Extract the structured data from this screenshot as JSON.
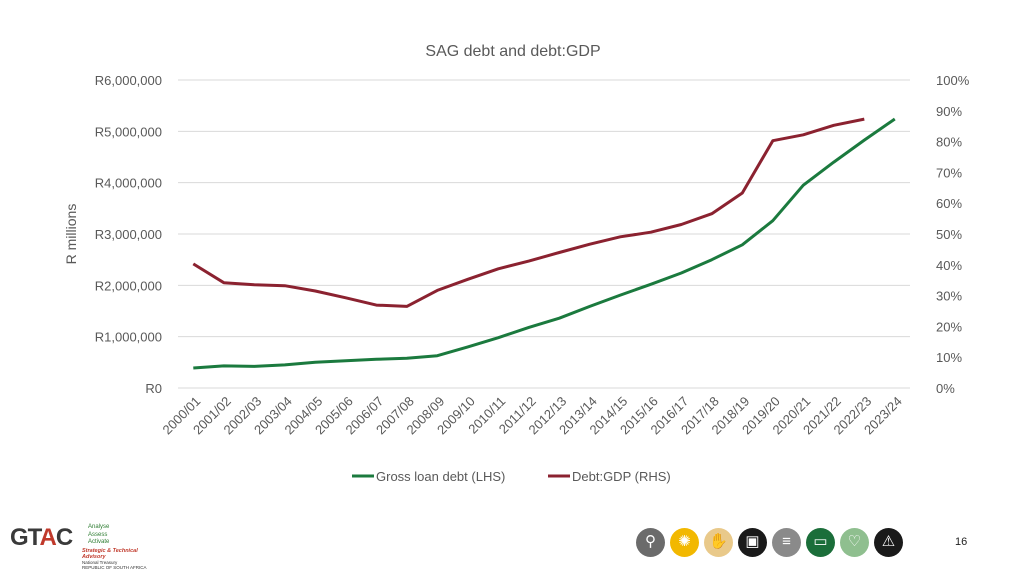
{
  "chart_data": {
    "type": "line",
    "title": "SAG debt and debt:GDP",
    "ylabel": "R millions",
    "y2label": "",
    "categories": [
      "2000/01",
      "2001/02",
      "2002/03",
      "2003/04",
      "2004/05",
      "2005/06",
      "2006/07",
      "2007/08",
      "2008/09",
      "2009/10",
      "2010/11",
      "2011/12",
      "2012/13",
      "2013/14",
      "2014/15",
      "2015/16",
      "2016/17",
      "2017/18",
      "2018/19",
      "2019/20",
      "2020/21",
      "2021/22",
      "2022/23",
      "2023/24"
    ],
    "ylim": [
      0,
      6000000
    ],
    "y2lim": [
      0,
      100
    ],
    "yticks": [
      "R0",
      "R1,000,000",
      "R2,000,000",
      "R3,000,000",
      "R4,000,000",
      "R5,000,000",
      "R6,000,000"
    ],
    "y2ticks": [
      "0%",
      "10%",
      "20%",
      "30%",
      "40%",
      "50%",
      "60%",
      "70%",
      "80%",
      "90%",
      "100%"
    ],
    "series": [
      {
        "name": "Gross loan debt (LHS)",
        "axis": "left",
        "color": "#1b7a3e",
        "values": [
          390000,
          430000,
          420000,
          450000,
          500000,
          530000,
          560000,
          580000,
          630000,
          800000,
          980000,
          1180000,
          1360000,
          1590000,
          1810000,
          2020000,
          2240000,
          2500000,
          2790000,
          3260000,
          3950000,
          4400000,
          4830000,
          5240000
        ]
      },
      {
        "name": "Debt:GDP (RHS)",
        "axis": "right",
        "color": "#8b2230",
        "values": [
          40.3,
          34.2,
          33.5,
          33.2,
          31.5,
          29.3,
          26.9,
          26.5,
          31.7,
          35.3,
          38.7,
          41.2,
          44.0,
          46.7,
          49.1,
          50.6,
          53.1,
          56.6,
          63.3,
          80.3,
          82.2,
          85.3,
          87.3,
          null
        ]
      }
    ],
    "legend_position": "bottom",
    "grid": true
  },
  "page": {
    "number": "16"
  },
  "logo": {
    "name": "GTAC",
    "taglines": [
      "Analyse",
      "Assess",
      "Activate"
    ],
    "subtitle": "Strategic & Technical Advisory",
    "treasury": [
      "National Treasury",
      "REPUBLIC OF SOUTH AFRICA"
    ]
  },
  "footer_icons": [
    {
      "name": "water-tap-icon",
      "color": "#6b6b6b",
      "glyph": "⚲"
    },
    {
      "name": "lightbulb-icon",
      "color": "#f2b800",
      "glyph": "✺"
    },
    {
      "name": "hand-icon",
      "color": "#e9c98a",
      "glyph": "✋"
    },
    {
      "name": "bus-icon",
      "color": "#1a1a1a",
      "glyph": "▣"
    },
    {
      "name": "road-icon",
      "color": "#8a8a8a",
      "glyph": "≡"
    },
    {
      "name": "book-icon",
      "color": "#1b6e3a",
      "glyph": "▭"
    },
    {
      "name": "ribbon-icon",
      "color": "#8fbf8f",
      "glyph": "♡"
    },
    {
      "name": "warning-icon",
      "color": "#1a1a1a",
      "glyph": "⚠"
    }
  ]
}
